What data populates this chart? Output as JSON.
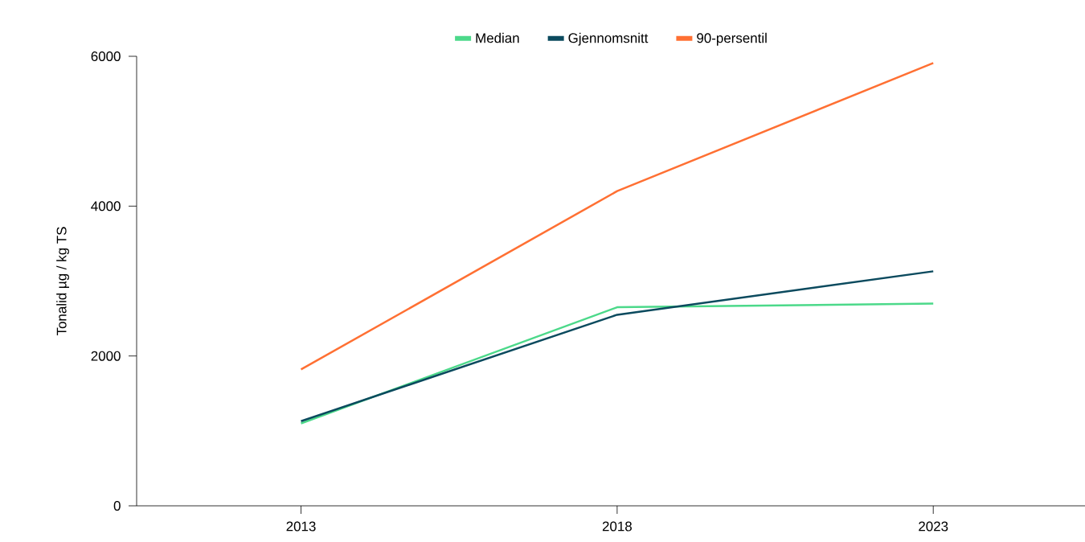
{
  "chart_data": {
    "type": "line",
    "ylabel": "Tonalid µg / kg TS",
    "categories": [
      "2013",
      "2018",
      "2023"
    ],
    "series": [
      {
        "name": "Median",
        "color": "#4cd98a",
        "values": [
          1100,
          2650,
          2700
        ]
      },
      {
        "name": "Gjennomsnitt",
        "color": "#0b4a5e",
        "values": [
          1130,
          2550,
          3130
        ]
      },
      {
        "name": "90-persentil",
        "color": "#ff7033",
        "values": [
          1820,
          4200,
          5910
        ]
      }
    ],
    "ylim": [
      0,
      6000
    ],
    "yticks": [
      0,
      2000,
      4000,
      6000
    ],
    "grid": false,
    "legend": "top",
    "marker": "none",
    "line_style": "solid"
  }
}
